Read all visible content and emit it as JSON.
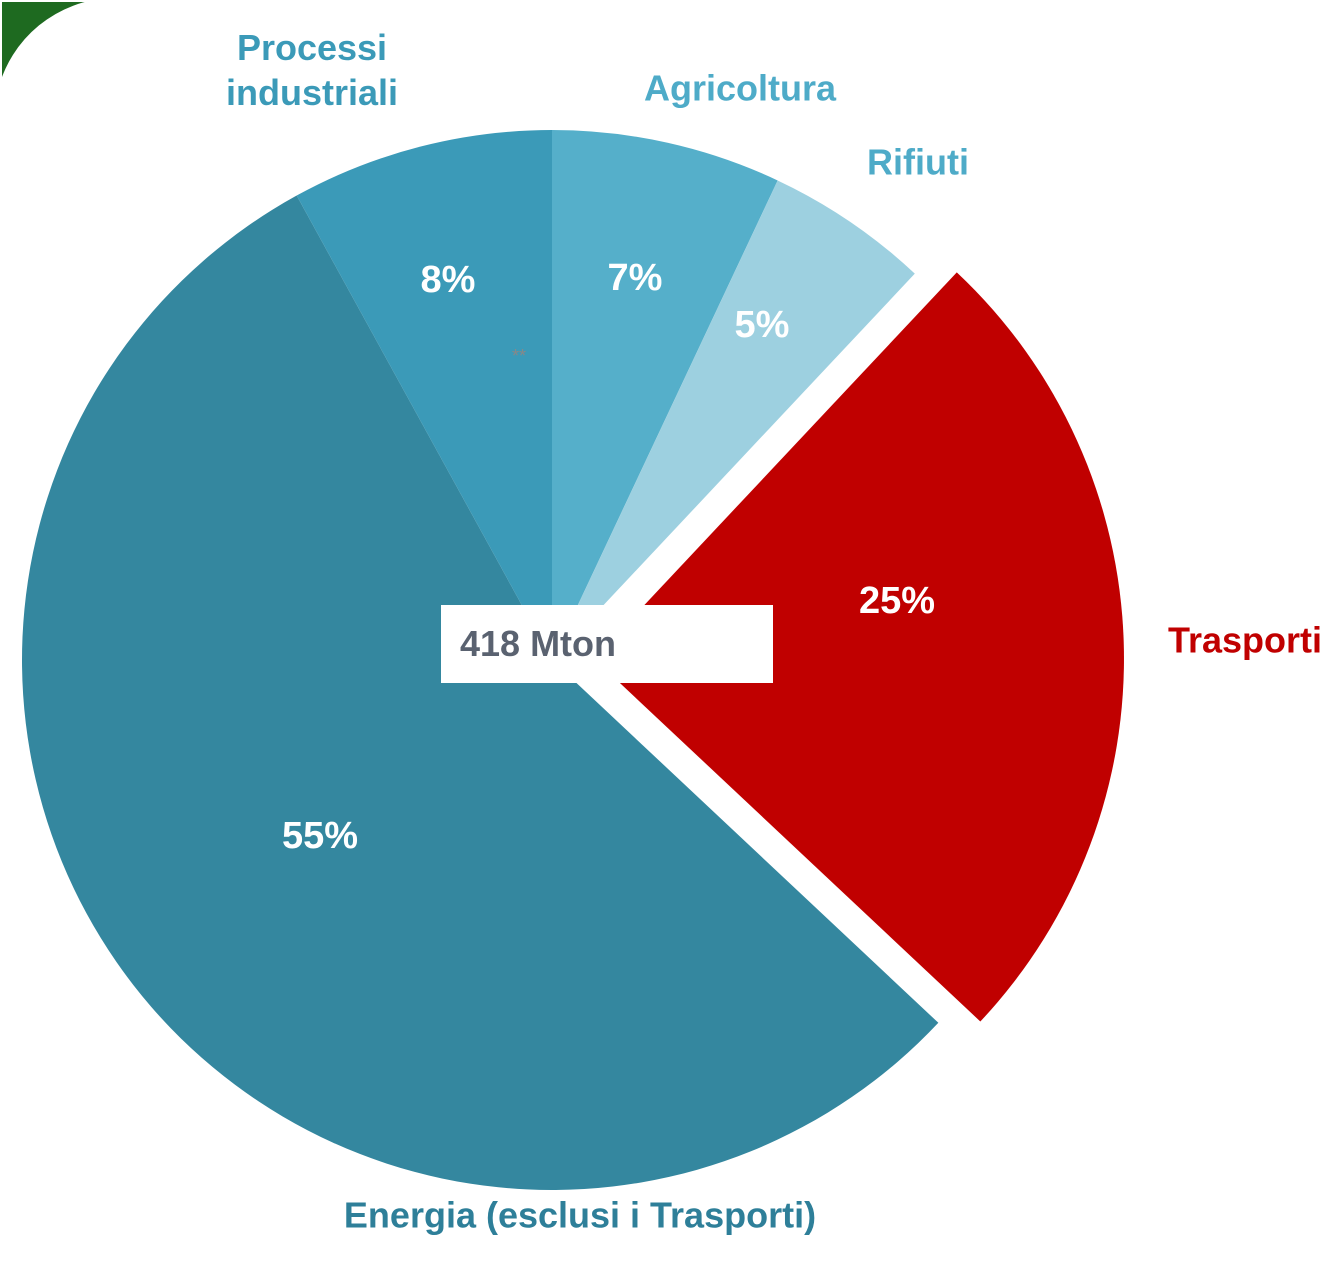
{
  "chart_data": {
    "type": "pie",
    "categories": [
      "Agricoltura",
      "Rifiuti",
      "Trasporti",
      "Energia (esclusi i Trasporti)",
      "Processi industriali"
    ],
    "values": [
      7,
      5,
      25,
      55,
      8
    ],
    "value_labels": [
      "7%",
      "5%",
      "25%",
      "55%",
      "8%"
    ],
    "colors": [
      "#55afca",
      "#9dd0e0",
      "#c00000",
      "#34879f",
      "#3b9ab8"
    ],
    "exploded": [
      "Trasporti"
    ],
    "total_label": "418 Mton",
    "annotation": "**"
  }
}
